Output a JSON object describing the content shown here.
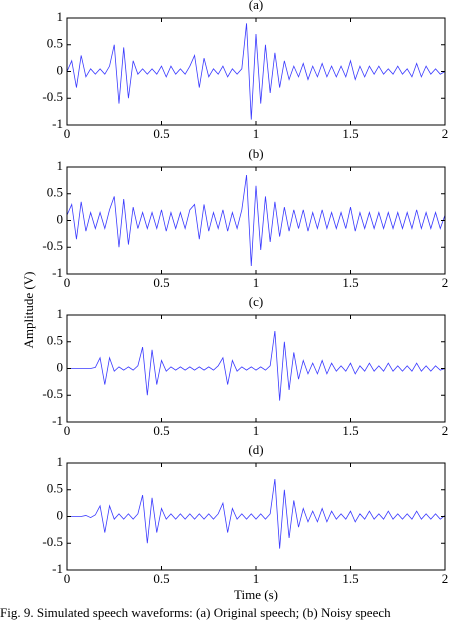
{
  "ylabel": "Amplitude (V)",
  "xlabel": "Time (s)",
  "caption": "Fig. 9. Simulated speech waveforms: (a) Original speech; (b) Noisy speech",
  "chart_data": [
    {
      "type": "line",
      "title": "(a)",
      "xlim": [
        0,
        2
      ],
      "ylim": [
        -1,
        1
      ],
      "xticks": [
        0,
        0.5,
        1,
        1.5,
        2
      ],
      "yticks": [
        -1,
        -0.5,
        0,
        0.5,
        1
      ],
      "x": [
        0,
        0.025,
        0.05,
        0.075,
        0.1,
        0.125,
        0.15,
        0.175,
        0.2,
        0.225,
        0.25,
        0.275,
        0.3,
        0.325,
        0.35,
        0.375,
        0.4,
        0.425,
        0.45,
        0.475,
        0.5,
        0.525,
        0.55,
        0.575,
        0.6,
        0.625,
        0.65,
        0.675,
        0.7,
        0.725,
        0.75,
        0.775,
        0.8,
        0.825,
        0.85,
        0.875,
        0.9,
        0.925,
        0.95,
        0.975,
        1,
        1.025,
        1.05,
        1.075,
        1.1,
        1.125,
        1.15,
        1.175,
        1.2,
        1.225,
        1.25,
        1.275,
        1.3,
        1.325,
        1.35,
        1.375,
        1.4,
        1.425,
        1.45,
        1.475,
        1.5,
        1.525,
        1.55,
        1.575,
        1.6,
        1.625,
        1.65,
        1.675,
        1.7,
        1.725,
        1.75,
        1.775,
        1.8,
        1.825,
        1.85,
        1.875,
        1.9,
        1.925,
        1.95,
        1.975,
        2
      ],
      "series": [
        {
          "color": "#3a3aff",
          "values": [
            0,
            0.2,
            -0.3,
            0.3,
            -0.1,
            0.05,
            -0.05,
            0.05,
            -0.05,
            0.1,
            0.5,
            -0.6,
            0.45,
            -0.5,
            0.2,
            -0.05,
            0.05,
            -0.05,
            0.05,
            -0.05,
            0.1,
            -0.1,
            0.1,
            -0.05,
            0.05,
            -0.05,
            0.1,
            0.3,
            -0.3,
            0.25,
            -0.1,
            0.05,
            -0.05,
            0.1,
            -0.1,
            0.05,
            -0.05,
            0.05,
            0.9,
            -0.9,
            0.7,
            -0.6,
            0.5,
            -0.4,
            0.35,
            -0.3,
            0.2,
            -0.15,
            0.1,
            -0.1,
            0.15,
            -0.15,
            0.1,
            -0.1,
            0.15,
            -0.1,
            0.1,
            -0.1,
            0.1,
            -0.1,
            0.2,
            -0.15,
            0.1,
            -0.1,
            0.1,
            -0.05,
            0.1,
            -0.05,
            0.05,
            -0.05,
            0.1,
            -0.05,
            0.05,
            -0.1,
            0.15,
            -0.1,
            0.1,
            -0.05,
            0.05,
            -0.05,
            0
          ]
        }
      ]
    },
    {
      "type": "line",
      "title": "(b)",
      "xlim": [
        0,
        2
      ],
      "ylim": [
        -1,
        1
      ],
      "xticks": [
        0,
        0.5,
        1,
        1.5,
        2
      ],
      "yticks": [
        -1,
        -0.5,
        0,
        0.5,
        1
      ],
      "x": [
        0,
        0.025,
        0.05,
        0.075,
        0.1,
        0.125,
        0.15,
        0.175,
        0.2,
        0.225,
        0.25,
        0.275,
        0.3,
        0.325,
        0.35,
        0.375,
        0.4,
        0.425,
        0.45,
        0.475,
        0.5,
        0.525,
        0.55,
        0.575,
        0.6,
        0.625,
        0.65,
        0.675,
        0.7,
        0.725,
        0.75,
        0.775,
        0.8,
        0.825,
        0.85,
        0.875,
        0.9,
        0.925,
        0.95,
        0.975,
        1,
        1.025,
        1.05,
        1.075,
        1.1,
        1.125,
        1.15,
        1.175,
        1.2,
        1.225,
        1.25,
        1.275,
        1.3,
        1.325,
        1.35,
        1.375,
        1.4,
        1.425,
        1.45,
        1.475,
        1.5,
        1.525,
        1.55,
        1.575,
        1.6,
        1.625,
        1.65,
        1.675,
        1.7,
        1.725,
        1.75,
        1.775,
        1.8,
        1.825,
        1.85,
        1.875,
        1.9,
        1.925,
        1.95,
        1.975,
        2
      ],
      "series": [
        {
          "color": "#3a3aff",
          "values": [
            0.1,
            0.3,
            -0.35,
            0.35,
            -0.2,
            0.15,
            -0.15,
            0.15,
            -0.15,
            0.2,
            0.45,
            -0.5,
            0.4,
            -0.45,
            0.25,
            -0.15,
            0.15,
            -0.15,
            0.15,
            -0.15,
            0.2,
            -0.2,
            0.15,
            -0.15,
            0.15,
            -0.15,
            0.2,
            0.3,
            -0.35,
            0.3,
            -0.2,
            0.15,
            -0.15,
            0.2,
            -0.2,
            0.15,
            -0.15,
            0.2,
            0.85,
            -0.85,
            0.65,
            -0.55,
            0.45,
            -0.4,
            0.35,
            -0.3,
            0.25,
            -0.2,
            0.2,
            -0.15,
            0.2,
            -0.2,
            0.15,
            -0.15,
            0.2,
            -0.15,
            0.15,
            -0.15,
            0.15,
            -0.15,
            0.25,
            -0.2,
            0.15,
            -0.15,
            0.15,
            -0.15,
            0.15,
            -0.15,
            0.15,
            -0.15,
            0.15,
            -0.15,
            0.15,
            -0.15,
            0.2,
            -0.15,
            0.15,
            -0.15,
            0.15,
            -0.15,
            0.1
          ]
        }
      ]
    },
    {
      "type": "line",
      "title": "(c)",
      "xlim": [
        0,
        2
      ],
      "ylim": [
        -1,
        1
      ],
      "xticks": [
        0,
        0.5,
        1,
        1.5,
        2
      ],
      "yticks": [
        -1,
        -0.5,
        0,
        0.5,
        1
      ],
      "x": [
        0,
        0.025,
        0.05,
        0.075,
        0.1,
        0.125,
        0.15,
        0.175,
        0.2,
        0.225,
        0.25,
        0.275,
        0.3,
        0.325,
        0.35,
        0.375,
        0.4,
        0.425,
        0.45,
        0.475,
        0.5,
        0.525,
        0.55,
        0.575,
        0.6,
        0.625,
        0.65,
        0.675,
        0.7,
        0.725,
        0.75,
        0.775,
        0.8,
        0.825,
        0.85,
        0.875,
        0.9,
        0.925,
        0.95,
        0.975,
        1,
        1.025,
        1.05,
        1.075,
        1.1,
        1.125,
        1.15,
        1.175,
        1.2,
        1.225,
        1.25,
        1.275,
        1.3,
        1.325,
        1.35,
        1.375,
        1.4,
        1.425,
        1.45,
        1.475,
        1.5,
        1.525,
        1.55,
        1.575,
        1.6,
        1.625,
        1.65,
        1.675,
        1.7,
        1.725,
        1.75,
        1.775,
        1.8,
        1.825,
        1.85,
        1.875,
        1.9,
        1.925,
        1.95,
        1.975,
        2
      ],
      "series": [
        {
          "color": "#3a3aff",
          "values": [
            0,
            0,
            0,
            0,
            0,
            0,
            0.02,
            0.2,
            -0.3,
            0.2,
            -0.05,
            0.03,
            -0.03,
            0.03,
            -0.03,
            0.05,
            0.4,
            -0.5,
            0.35,
            -0.3,
            0.15,
            -0.05,
            0.03,
            -0.03,
            0.03,
            -0.03,
            0.03,
            -0.03,
            0.03,
            -0.03,
            0.03,
            -0.03,
            0.05,
            0.2,
            -0.3,
            0.15,
            -0.05,
            0.03,
            -0.03,
            0.03,
            -0.03,
            0.03,
            -0.03,
            0.05,
            0.7,
            -0.6,
            0.5,
            -0.4,
            0.3,
            -0.2,
            0.15,
            -0.1,
            0.1,
            -0.1,
            0.15,
            -0.1,
            0.1,
            -0.05,
            0.05,
            -0.05,
            0.1,
            -0.1,
            0.05,
            -0.05,
            0.1,
            -0.05,
            0.05,
            -0.05,
            0.1,
            -0.05,
            0.05,
            -0.05,
            0.05,
            -0.05,
            0.1,
            -0.05,
            0.05,
            -0.05,
            0.05,
            -0.03,
            0
          ]
        }
      ]
    },
    {
      "type": "line",
      "title": "(d)",
      "xlabel": "Time (s)",
      "xlim": [
        0,
        2
      ],
      "ylim": [
        -1,
        1
      ],
      "xticks": [
        0,
        0.5,
        1,
        1.5,
        2
      ],
      "yticks": [
        -1,
        -0.5,
        0,
        0.5,
        1
      ],
      "x": [
        0,
        0.025,
        0.05,
        0.075,
        0.1,
        0.125,
        0.15,
        0.175,
        0.2,
        0.225,
        0.25,
        0.275,
        0.3,
        0.325,
        0.35,
        0.375,
        0.4,
        0.425,
        0.45,
        0.475,
        0.5,
        0.525,
        0.55,
        0.575,
        0.6,
        0.625,
        0.65,
        0.675,
        0.7,
        0.725,
        0.75,
        0.775,
        0.8,
        0.825,
        0.85,
        0.875,
        0.9,
        0.925,
        0.95,
        0.975,
        1,
        1.025,
        1.05,
        1.075,
        1.1,
        1.125,
        1.15,
        1.175,
        1.2,
        1.225,
        1.25,
        1.275,
        1.3,
        1.325,
        1.35,
        1.375,
        1.4,
        1.425,
        1.45,
        1.475,
        1.5,
        1.525,
        1.55,
        1.575,
        1.6,
        1.625,
        1.65,
        1.675,
        1.7,
        1.725,
        1.75,
        1.775,
        1.8,
        1.825,
        1.85,
        1.875,
        1.9,
        1.925,
        1.95,
        1.975,
        2
      ],
      "series": [
        {
          "color": "#3a3aff",
          "values": [
            0,
            0,
            0,
            0,
            0.02,
            -0.02,
            0.03,
            0.2,
            -0.3,
            0.2,
            -0.05,
            0.05,
            -0.05,
            0.05,
            -0.05,
            0.05,
            0.4,
            -0.5,
            0.35,
            -0.3,
            0.15,
            -0.05,
            0.05,
            -0.05,
            0.05,
            -0.05,
            0.05,
            -0.05,
            0.05,
            -0.05,
            0.05,
            -0.05,
            0.05,
            0.25,
            -0.3,
            0.15,
            -0.05,
            0.05,
            -0.05,
            0.05,
            -0.05,
            0.05,
            -0.05,
            0.05,
            0.7,
            -0.6,
            0.5,
            -0.4,
            0.3,
            -0.2,
            0.15,
            -0.1,
            0.1,
            -0.1,
            0.15,
            -0.1,
            0.1,
            -0.05,
            0.05,
            -0.05,
            0.1,
            -0.1,
            0.05,
            -0.05,
            0.1,
            -0.05,
            0.05,
            -0.05,
            0.1,
            -0.05,
            0.05,
            -0.05,
            0.05,
            -0.05,
            0.1,
            -0.05,
            0.05,
            -0.05,
            0.05,
            -0.05,
            0.02
          ]
        }
      ]
    }
  ]
}
